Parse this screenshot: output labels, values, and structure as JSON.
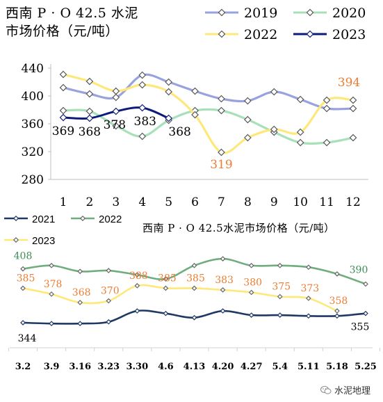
{
  "chart_data": [
    {
      "type": "line",
      "title": "西南 P · O 42.5 水泥\n市场价格（元/吨）",
      "categories": [
        "1",
        "2",
        "3",
        "4",
        "5",
        "6",
        "7",
        "8",
        "9",
        "10",
        "11",
        "12"
      ],
      "ylim": [
        280,
        440
      ],
      "yticks": [
        280,
        320,
        360,
        400,
        440
      ],
      "grid": false,
      "legend": "top-right",
      "series": [
        {
          "name": "2019",
          "color": "#98A2DE",
          "values": [
            412,
            403,
            398,
            430,
            420,
            407,
            396,
            393,
            406,
            395,
            382,
            382
          ]
        },
        {
          "name": "2020",
          "color": "#A8E0B9",
          "values": [
            379,
            378,
            357,
            342,
            365,
            379,
            379,
            366,
            348,
            333,
            333,
            340
          ]
        },
        {
          "name": "2022",
          "color": "#FFE87A",
          "values": [
            431,
            421,
            407,
            416,
            406,
            373,
            319,
            340,
            352,
            348,
            394,
            394
          ]
        },
        {
          "name": "2023",
          "color": "#0D1B7A",
          "values": [
            369,
            368,
            378,
            383,
            368,
            null,
            null,
            null,
            null,
            null,
            null,
            null
          ]
        }
      ],
      "data_labels": [
        {
          "series": "2023",
          "index": 0,
          "text": "369",
          "color": "#000000"
        },
        {
          "series": "2023",
          "index": 1,
          "text": "368",
          "color": "#000000"
        },
        {
          "series": "2023",
          "index": 2,
          "text": "378",
          "color": "#000000"
        },
        {
          "series": "2023",
          "index": 3,
          "text": "383",
          "color": "#000000"
        },
        {
          "series": "2023",
          "index": 4,
          "text": "368",
          "color": "#000000"
        },
        {
          "series": "2022",
          "index": 6,
          "text": "319",
          "color": "#ED7D31"
        },
        {
          "series": "2022",
          "index": 11,
          "text": "394",
          "color": "#ED7D31"
        }
      ]
    },
    {
      "type": "line",
      "title": "西南 P · O 42.5水泥市场价格（元/吨）",
      "categories": [
        "3.2",
        "3.9",
        "3.16",
        "3.23",
        "3.30",
        "4.6",
        "4.13",
        "4.20",
        "4.27",
        "5.4",
        "5.11",
        "5.18",
        "5.25"
      ],
      "ylim": [
        320,
        430
      ],
      "grid": false,
      "legend": "top-left",
      "series": [
        {
          "name": "2021",
          "color": "#1F3864",
          "values": [
            344,
            343,
            343,
            345,
            358,
            355,
            350,
            358,
            353,
            353,
            352,
            352,
            355
          ]
        },
        {
          "name": "2022",
          "color": "#70AD7E",
          "values": [
            408,
            412,
            405,
            406,
            401,
            396,
            412,
            420,
            412,
            412,
            410,
            402,
            390
          ]
        },
        {
          "name": "2023",
          "color": "#FFE87A",
          "values": [
            385,
            378,
            368,
            370,
            388,
            385,
            385,
            383,
            380,
            375,
            373,
            358,
            null
          ]
        }
      ],
      "data_labels": [
        {
          "series": "2022",
          "index": 0,
          "text": "408",
          "color": "#3B8E55"
        },
        {
          "series": "2022",
          "index": 12,
          "text": "390",
          "color": "#3B8E55"
        },
        {
          "series": "2021",
          "index": 0,
          "text": "344",
          "color": "#000000"
        },
        {
          "series": "2021",
          "index": 12,
          "text": "355",
          "color": "#000000"
        },
        {
          "series": "2023",
          "index": 0,
          "text": "385",
          "color": "#ED7D31"
        },
        {
          "series": "2023",
          "index": 1,
          "text": "378",
          "color": "#ED7D31"
        },
        {
          "series": "2023",
          "index": 2,
          "text": "368",
          "color": "#ED7D31"
        },
        {
          "series": "2023",
          "index": 3,
          "text": "370",
          "color": "#ED7D31"
        },
        {
          "series": "2023",
          "index": 4,
          "text": "388",
          "color": "#ED7D31"
        },
        {
          "series": "2023",
          "index": 5,
          "text": "385",
          "color": "#ED7D31"
        },
        {
          "series": "2023",
          "index": 6,
          "text": "385",
          "color": "#ED7D31"
        },
        {
          "series": "2023",
          "index": 7,
          "text": "383",
          "color": "#ED7D31"
        },
        {
          "series": "2023",
          "index": 8,
          "text": "380",
          "color": "#ED7D31"
        },
        {
          "series": "2023",
          "index": 9,
          "text": "375",
          "color": "#ED7D31"
        },
        {
          "series": "2023",
          "index": 10,
          "text": "373",
          "color": "#ED7D31"
        },
        {
          "series": "2023",
          "index": 11,
          "text": "358",
          "color": "#ED7D31"
        }
      ]
    }
  ],
  "watermark": {
    "text": "水泥地理",
    "icon": "wechat-icon"
  }
}
